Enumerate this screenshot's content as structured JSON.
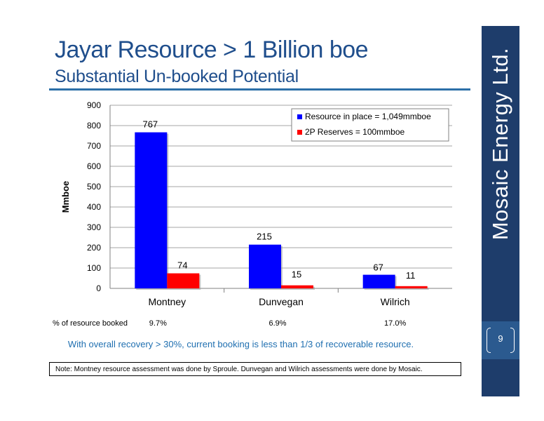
{
  "header": {
    "title": "Jayar Resource > 1 Billion boe",
    "subtitle": "Substantial Un-booked Potential"
  },
  "sidebar": {
    "brand": "Mosaic Energy Ltd.",
    "page_number": "9"
  },
  "chart_data": {
    "type": "bar",
    "categories": [
      "Montney",
      "Dunvegan",
      "Wilrich"
    ],
    "series": [
      {
        "name": "Resource in place = 1,049mmboe",
        "values": [
          767,
          215,
          67
        ],
        "color": "#0000ff"
      },
      {
        "name": "2P Reserves = 100mmboe",
        "values": [
          74,
          15,
          11
        ],
        "color": "#ff0000"
      }
    ],
    "ylabel": "Mmboe",
    "ylim": [
      0,
      900
    ],
    "yticks": [
      0,
      100,
      200,
      300,
      400,
      500,
      600,
      700,
      800,
      900
    ],
    "grid": true,
    "legend": "top-right"
  },
  "booked": {
    "label": "% of resource booked",
    "values": [
      "9.7%",
      "6.9%",
      "17.0%"
    ]
  },
  "recovery_text": "With overall recovery > 30%, current booking is less than 1/3 of recoverable resource.",
  "note": "Note: Montney resource assessment was done by Sproule.  Dunvegan and Wilrich assessments were done by Mosaic."
}
